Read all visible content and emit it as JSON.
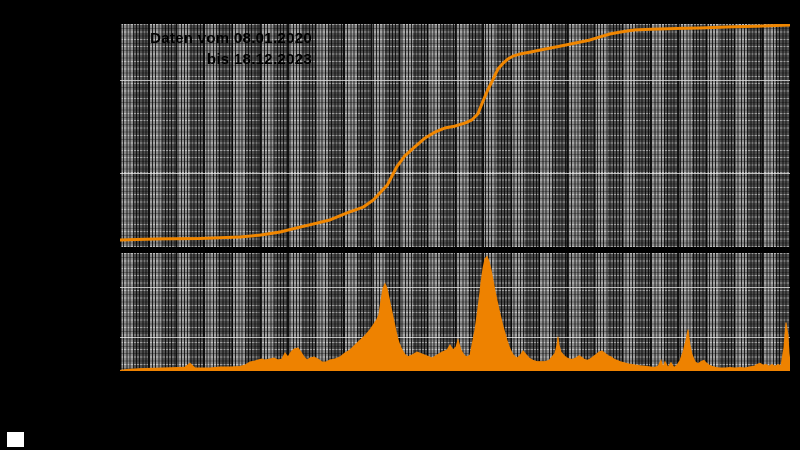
{
  "annotation": {
    "line1": "Daten vom 08.01.2020",
    "line2": "bis 18.12.2023"
  },
  "colors": {
    "background": "#000000",
    "plot_background_light_band": "#8c8c8c",
    "plot_background_dark_band": "#4e4e4e",
    "orange_line": "#f08600",
    "orange_fill": "#ee8200",
    "annotation_text": "#000000",
    "white_marker": "#ffffff"
  },
  "chart_data": [
    {
      "type": "line",
      "name": "cumulative-total",
      "title": "",
      "xlabel": "",
      "ylabel": "",
      "x_range": "fraction of date span 08.01.2020 to 18.12.2023",
      "ylim": [
        0,
        100
      ],
      "grid": true,
      "legend": "none",
      "points": [
        [
          0,
          0
        ],
        [
          0.06,
          0.5
        ],
        [
          0.119,
          0.7
        ],
        [
          0.179,
          1.4
        ],
        [
          0.209,
          2.3
        ],
        [
          0.239,
          3.7
        ],
        [
          0.269,
          6.0
        ],
        [
          0.288,
          7.4
        ],
        [
          0.313,
          9.3
        ],
        [
          0.339,
          12.6
        ],
        [
          0.363,
          15.3
        ],
        [
          0.378,
          18.6
        ],
        [
          0.399,
          25.6
        ],
        [
          0.413,
          34.0
        ],
        [
          0.425,
          39.1
        ],
        [
          0.44,
          43.3
        ],
        [
          0.455,
          47.4
        ],
        [
          0.47,
          50.2
        ],
        [
          0.485,
          52.1
        ],
        [
          0.5,
          53.0
        ],
        [
          0.515,
          54.4
        ],
        [
          0.525,
          55.8
        ],
        [
          0.534,
          58.6
        ],
        [
          0.542,
          64.7
        ],
        [
          0.549,
          69.8
        ],
        [
          0.557,
          74.9
        ],
        [
          0.564,
          79.5
        ],
        [
          0.572,
          82.3
        ],
        [
          0.579,
          84.2
        ],
        [
          0.587,
          85.6
        ],
        [
          0.597,
          86.5
        ],
        [
          0.612,
          87.4
        ],
        [
          0.634,
          88.8
        ],
        [
          0.657,
          90.2
        ],
        [
          0.679,
          91.6
        ],
        [
          0.701,
          93.0
        ],
        [
          0.716,
          94.4
        ],
        [
          0.731,
          95.8
        ],
        [
          0.746,
          96.7
        ],
        [
          0.769,
          97.7
        ],
        [
          0.799,
          98.1
        ],
        [
          0.836,
          98.4
        ],
        [
          0.866,
          98.6
        ],
        [
          0.91,
          99.1
        ],
        [
          0.955,
          99.5
        ],
        [
          1,
          100
        ]
      ]
    },
    {
      "type": "area",
      "name": "daily-values",
      "title": "",
      "xlabel": "",
      "ylabel": "",
      "x_range": "fraction of date span 08.01.2020 to 18.12.2023",
      "ylim": [
        0,
        100
      ],
      "grid": true,
      "legend": "none",
      "points": [
        [
          0,
          0.5
        ],
        [
          0.0149,
          1.5
        ],
        [
          0.0299,
          2
        ],
        [
          0.0522,
          2.3
        ],
        [
          0.0746,
          2.8
        ],
        [
          0.097,
          3.2
        ],
        [
          0.1045,
          6.5
        ],
        [
          0.1119,
          2.5
        ],
        [
          0.1194,
          2.5
        ],
        [
          0.1343,
          2.5
        ],
        [
          0.1493,
          3.4
        ],
        [
          0.1642,
          3.4
        ],
        [
          0.1791,
          3.8
        ],
        [
          0.1866,
          5.1
        ],
        [
          0.194,
          7.6
        ],
        [
          0.2015,
          8.5
        ],
        [
          0.206,
          9.3
        ],
        [
          0.2119,
          10.2
        ],
        [
          0.2164,
          9.3
        ],
        [
          0.2239,
          10.2
        ],
        [
          0.2299,
          11
        ],
        [
          0.2358,
          9.3
        ],
        [
          0.2418,
          10.2
        ],
        [
          0.2463,
          15.3
        ],
        [
          0.2507,
          11.9
        ],
        [
          0.2552,
          16.1
        ],
        [
          0.2597,
          18.6
        ],
        [
          0.2657,
          19.5
        ],
        [
          0.2701,
          16.1
        ],
        [
          0.2746,
          11.9
        ],
        [
          0.2791,
          9.3
        ],
        [
          0.2836,
          11
        ],
        [
          0.2896,
          11.9
        ],
        [
          0.2955,
          10.2
        ],
        [
          0.3015,
          7.6
        ],
        [
          0.3075,
          7.6
        ],
        [
          0.3134,
          9.3
        ],
        [
          0.3209,
          10.2
        ],
        [
          0.3284,
          11.9
        ],
        [
          0.3358,
          15.3
        ],
        [
          0.3433,
          17.8
        ],
        [
          0.3507,
          22
        ],
        [
          0.3582,
          26
        ],
        [
          0.3657,
          30
        ],
        [
          0.3731,
          35
        ],
        [
          0.3791,
          40
        ],
        [
          0.3836,
          44
        ],
        [
          0.3866,
          48
        ],
        [
          0.3896,
          60
        ],
        [
          0.3925,
          70
        ],
        [
          0.3955,
          74
        ],
        [
          0.3985,
          70
        ],
        [
          0.4015,
          62
        ],
        [
          0.4045,
          54
        ],
        [
          0.4075,
          46
        ],
        [
          0.4104,
          38
        ],
        [
          0.4134,
          30
        ],
        [
          0.4164,
          24
        ],
        [
          0.4209,
          18
        ],
        [
          0.4254,
          14
        ],
        [
          0.4299,
          12
        ],
        [
          0.4358,
          13.6
        ],
        [
          0.4433,
          16
        ],
        [
          0.4507,
          14.4
        ],
        [
          0.4582,
          12.7
        ],
        [
          0.4657,
          11
        ],
        [
          0.4731,
          13.6
        ],
        [
          0.4806,
          16
        ],
        [
          0.4881,
          17.8
        ],
        [
          0.4925,
          22
        ],
        [
          0.497,
          17.8
        ],
        [
          0.5015,
          20.3
        ],
        [
          0.5045,
          26.3
        ],
        [
          0.509,
          17.8
        ],
        [
          0.5134,
          13.6
        ],
        [
          0.5179,
          11.9
        ],
        [
          0.5224,
          13.6
        ],
        [
          0.5254,
          22
        ],
        [
          0.5299,
          35
        ],
        [
          0.5328,
          47
        ],
        [
          0.5358,
          60
        ],
        [
          0.5388,
          75
        ],
        [
          0.5418,
          87
        ],
        [
          0.5448,
          95
        ],
        [
          0.5478,
          97
        ],
        [
          0.5507,
          93
        ],
        [
          0.5537,
          86
        ],
        [
          0.5567,
          77
        ],
        [
          0.5597,
          68
        ],
        [
          0.5627,
          60
        ],
        [
          0.5657,
          52
        ],
        [
          0.5687,
          45
        ],
        [
          0.5716,
          38
        ],
        [
          0.5746,
          32
        ],
        [
          0.5776,
          26
        ],
        [
          0.5806,
          21
        ],
        [
          0.5836,
          17
        ],
        [
          0.5866,
          14
        ],
        [
          0.5896,
          12
        ],
        [
          0.5925,
          11
        ],
        [
          0.597,
          13
        ],
        [
          0.6015,
          17
        ],
        [
          0.606,
          14
        ],
        [
          0.6104,
          11
        ],
        [
          0.6164,
          9
        ],
        [
          0.6224,
          8
        ],
        [
          0.6284,
          8
        ],
        [
          0.6343,
          8
        ],
        [
          0.6403,
          9
        ],
        [
          0.6448,
          12
        ],
        [
          0.6493,
          15
        ],
        [
          0.6522,
          22
        ],
        [
          0.6537,
          29
        ],
        [
          0.6552,
          22
        ],
        [
          0.6582,
          16
        ],
        [
          0.6627,
          13
        ],
        [
          0.6672,
          11
        ],
        [
          0.6716,
          10
        ],
        [
          0.6761,
          10
        ],
        [
          0.6806,
          11
        ],
        [
          0.6851,
          13
        ],
        [
          0.6881,
          12
        ],
        [
          0.6925,
          10
        ],
        [
          0.697,
          9
        ],
        [
          0.7015,
          10
        ],
        [
          0.706,
          12
        ],
        [
          0.7104,
          14
        ],
        [
          0.7149,
          16
        ],
        [
          0.7194,
          17
        ],
        [
          0.7239,
          15
        ],
        [
          0.7284,
          13
        ],
        [
          0.7328,
          12
        ],
        [
          0.7373,
          10
        ],
        [
          0.7418,
          9
        ],
        [
          0.7463,
          8
        ],
        [
          0.7522,
          7
        ],
        [
          0.7582,
          6
        ],
        [
          0.7642,
          5.5
        ],
        [
          0.7701,
          5
        ],
        [
          0.7761,
          4.5
        ],
        [
          0.7836,
          4
        ],
        [
          0.791,
          3.5
        ],
        [
          0.797,
          3
        ],
        [
          0.803,
          4
        ],
        [
          0.8075,
          9
        ],
        [
          0.8104,
          3
        ],
        [
          0.8134,
          8
        ],
        [
          0.8179,
          3
        ],
        [
          0.8224,
          7
        ],
        [
          0.8269,
          3
        ],
        [
          0.8313,
          5
        ],
        [
          0.8358,
          9
        ],
        [
          0.8403,
          16
        ],
        [
          0.8448,
          26
        ],
        [
          0.8478,
          35
        ],
        [
          0.8507,
          22
        ],
        [
          0.8537,
          14
        ],
        [
          0.8582,
          8
        ],
        [
          0.8627,
          6
        ],
        [
          0.8672,
          8
        ],
        [
          0.8716,
          9
        ],
        [
          0.8746,
          7
        ],
        [
          0.8791,
          5
        ],
        [
          0.8836,
          4
        ],
        [
          0.8896,
          3
        ],
        [
          0.8955,
          2.5
        ],
        [
          0.903,
          2.5
        ],
        [
          0.9104,
          3
        ],
        [
          0.9179,
          2.5
        ],
        [
          0.9254,
          3
        ],
        [
          0.9328,
          2.5
        ],
        [
          0.9403,
          3.5
        ],
        [
          0.9463,
          4
        ],
        [
          0.9507,
          5.5
        ],
        [
          0.9552,
          6.5
        ],
        [
          0.9597,
          5
        ],
        [
          0.9642,
          5.5
        ],
        [
          0.9687,
          4
        ],
        [
          0.9731,
          5.5
        ],
        [
          0.9776,
          4
        ],
        [
          0.9821,
          5.5
        ],
        [
          0.9866,
          4.5
        ],
        [
          0.991,
          20
        ],
        [
          0.994,
          41
        ],
        [
          0.997,
          30
        ],
        [
          0.9985,
          15
        ],
        [
          1,
          8
        ]
      ]
    }
  ]
}
